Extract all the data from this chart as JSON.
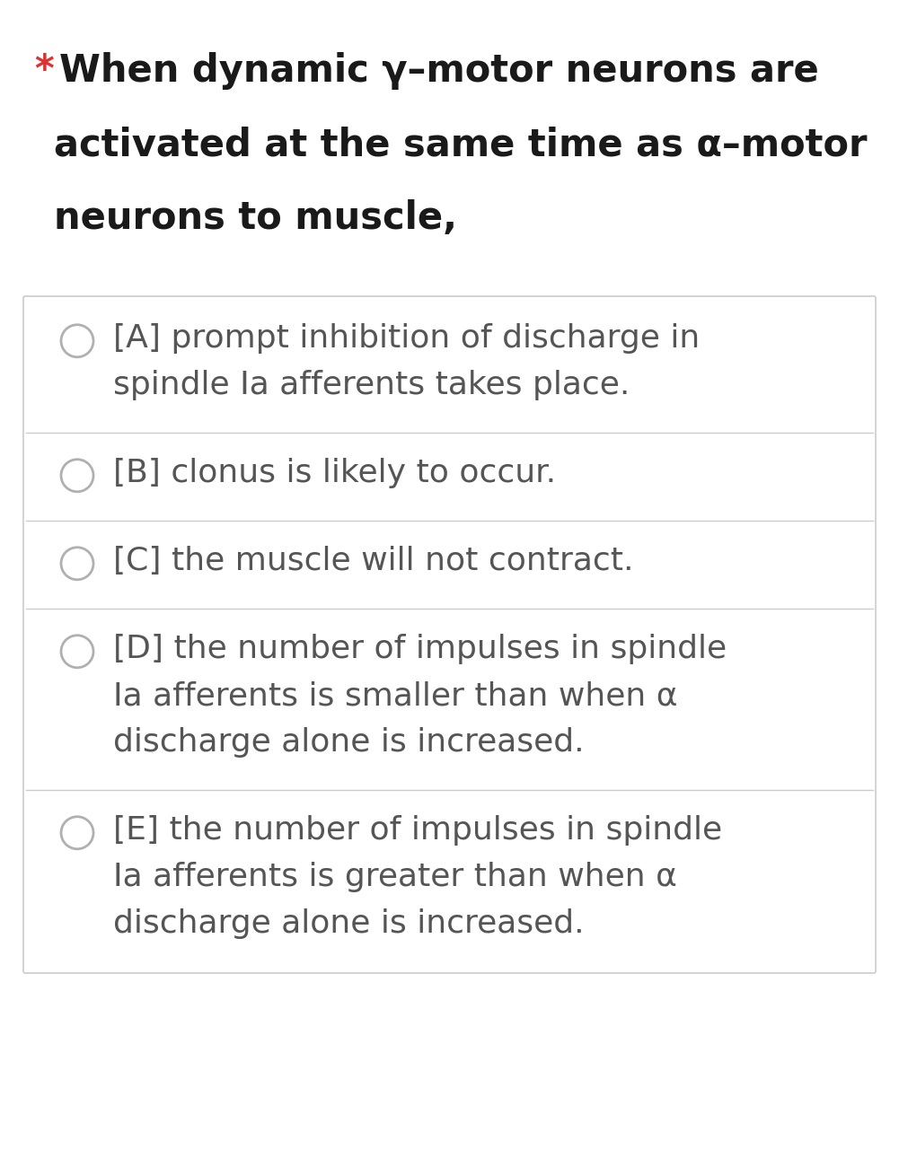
{
  "background_color": "#ffffff",
  "question_star_color": "#e03030",
  "question_text_color": "#1a1a1a",
  "question_lines": [
    "When dynamic γ–motor neurons are",
    "activated at the same time as α–motor",
    "neurons to muscle,"
  ],
  "options": [
    {
      "lines": [
        "[A] prompt inhibition of discharge in",
        "spindle Ia afferents takes place."
      ]
    },
    {
      "lines": [
        "[B] clonus is likely to occur."
      ]
    },
    {
      "lines": [
        "[C] the muscle will not contract."
      ]
    },
    {
      "lines": [
        "[D] the number of impulses in spindle",
        "Ia afferents is smaller than when α",
        "discharge alone is increased."
      ]
    },
    {
      "lines": [
        "[E] the number of impulses in spindle",
        "Ia afferents is greater than when α",
        "discharge alone is increased."
      ]
    }
  ],
  "option_text_color": "#555555",
  "circle_color": "#b0b0b0",
  "border_color": "#cccccc",
  "option_bg_color": "#ffffff",
  "fig_width": 10.01,
  "fig_height": 12.8,
  "dpi": 100
}
